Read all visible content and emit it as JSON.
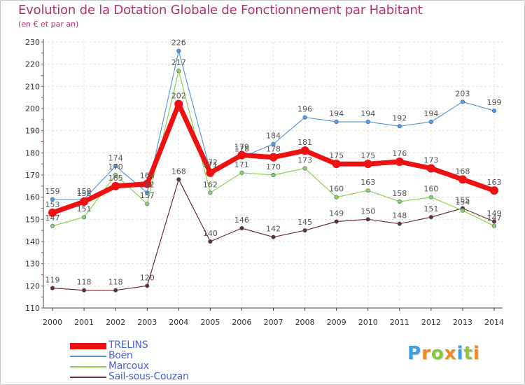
{
  "header": {
    "title": "Evolution de la Dotation Globale de Fonctionnement par Habitant",
    "subtitle": "(en € et par an)"
  },
  "logo": {
    "text": "Proxiti",
    "colors": [
      "#3aa0e0",
      "#f08a24",
      "#8cc63f",
      "#f08a24",
      "#3aa0e0",
      "#8cc63f",
      "#f08a24"
    ]
  },
  "chart_data": {
    "type": "line",
    "x": [
      "2000",
      "2001",
      "2002",
      "2003",
      "2004",
      "2005",
      "2006",
      "2007",
      "2008",
      "2009",
      "2010",
      "2011",
      "2012",
      "2013",
      "2014"
    ],
    "ylim": [
      110,
      230
    ],
    "yticks": [
      110,
      120,
      130,
      140,
      150,
      160,
      170,
      180,
      190,
      200,
      210,
      220,
      230
    ],
    "grid": true,
    "legend_position": "bottom-left",
    "series": [
      {
        "name": "Sail-sous-Couzan",
        "color": "#6e2a2a",
        "width": 1.2,
        "marker": 2.8,
        "values": [
          119,
          118,
          118,
          120,
          168,
          140,
          146,
          142,
          145,
          149,
          150,
          148,
          151,
          155,
          149
        ]
      },
      {
        "name": "Marcoux",
        "color": "#8fd14f",
        "width": 1.2,
        "marker": 2.8,
        "values": [
          147,
          151,
          170,
          157,
          217,
          162,
          171,
          170,
          173,
          160,
          163,
          158,
          160,
          154,
          147
        ]
      },
      {
        "name": "Boën",
        "color": "#5b9bd5",
        "width": 1.2,
        "marker": 2.8,
        "values": [
          159,
          159,
          174,
          162,
          226,
          172,
          178,
          184,
          196,
          194,
          194,
          192,
          194,
          203,
          199
        ]
      },
      {
        "name": "TRELINS",
        "color": "#ee1111",
        "width": 7,
        "marker": 6,
        "values": [
          153,
          158,
          165,
          166,
          202,
          171,
          179,
          178,
          181,
          175,
          175,
          176,
          173,
          168,
          163
        ]
      }
    ],
    "legend_order": [
      "TRELINS",
      "Boën",
      "Marcoux",
      "Sail-sous-Couzan"
    ]
  }
}
